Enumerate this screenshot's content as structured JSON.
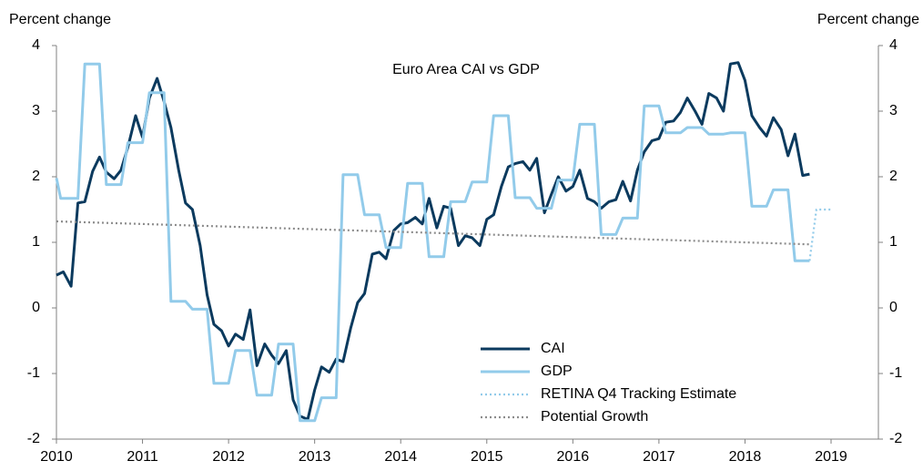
{
  "chart_data": {
    "type": "line",
    "title": "Euro Area CAI vs GDP",
    "y_label": "Percent change",
    "y2_label": "Percent change",
    "xlim": [
      2010,
      2019.55
    ],
    "xticks": [
      2010,
      2011,
      2012,
      2013,
      2014,
      2015,
      2016,
      2017,
      2018,
      2019
    ],
    "ylim": [
      -2,
      4
    ],
    "yticks": [
      -2,
      -1,
      0,
      1,
      2,
      3,
      4
    ],
    "y2lim": [
      -2,
      4
    ],
    "y2ticks": [
      -2,
      -1,
      0,
      1,
      2,
      3,
      4
    ],
    "series": [
      {
        "name": "CAI",
        "color": "#0b3a5e",
        "line_style": "solid",
        "x": [
          2010.0,
          2010.08,
          2010.17,
          2010.25,
          2010.33,
          2010.42,
          2010.5,
          2010.58,
          2010.67,
          2010.75,
          2010.83,
          2010.92,
          2011.0,
          2011.08,
          2011.17,
          2011.25,
          2011.33,
          2011.42,
          2011.5,
          2011.58,
          2011.67,
          2011.75,
          2011.83,
          2011.92,
          2012.0,
          2012.08,
          2012.17,
          2012.25,
          2012.33,
          2012.42,
          2012.5,
          2012.58,
          2012.67,
          2012.75,
          2012.83,
          2012.92,
          2013.0,
          2013.08,
          2013.17,
          2013.25,
          2013.33,
          2013.42,
          2013.5,
          2013.58,
          2013.67,
          2013.75,
          2013.83,
          2013.92,
          2014.0,
          2014.08,
          2014.17,
          2014.25,
          2014.33,
          2014.42,
          2014.5,
          2014.58,
          2014.67,
          2014.75,
          2014.83,
          2014.92,
          2015.0,
          2015.08,
          2015.17,
          2015.25,
          2015.33,
          2015.42,
          2015.5,
          2015.58,
          2015.67,
          2015.75,
          2015.83,
          2015.92,
          2016.0,
          2016.08,
          2016.17,
          2016.25,
          2016.33,
          2016.42,
          2016.5,
          2016.58,
          2016.67,
          2016.75,
          2016.83,
          2016.92,
          2017.0,
          2017.08,
          2017.17,
          2017.25,
          2017.33,
          2017.42,
          2017.5,
          2017.58,
          2017.67,
          2017.75,
          2017.83,
          2017.92,
          2018.0,
          2018.08,
          2018.17,
          2018.25,
          2018.33,
          2018.42,
          2018.5,
          2018.58,
          2018.67,
          2018.75
        ],
        "values": [
          0.5,
          0.55,
          0.33,
          1.6,
          1.62,
          2.08,
          2.3,
          2.07,
          1.97,
          2.1,
          2.45,
          2.93,
          2.6,
          3.2,
          3.5,
          3.15,
          2.75,
          2.1,
          1.6,
          1.5,
          0.95,
          0.2,
          -0.25,
          -0.35,
          -0.58,
          -0.4,
          -0.48,
          -0.03,
          -0.88,
          -0.55,
          -0.72,
          -0.85,
          -0.65,
          -1.4,
          -1.65,
          -1.7,
          -1.25,
          -0.9,
          -0.98,
          -0.78,
          -0.82,
          -0.3,
          0.08,
          0.22,
          0.82,
          0.85,
          0.75,
          1.18,
          1.28,
          1.3,
          1.38,
          1.28,
          1.67,
          1.22,
          1.55,
          1.52,
          0.95,
          1.1,
          1.07,
          0.95,
          1.35,
          1.42,
          1.85,
          2.15,
          2.2,
          2.23,
          2.1,
          2.28,
          1.45,
          1.73,
          2.0,
          1.78,
          1.85,
          2.1,
          1.67,
          1.62,
          1.52,
          1.62,
          1.65,
          1.93,
          1.63,
          2.1,
          2.38,
          2.55,
          2.58,
          2.83,
          2.85,
          2.98,
          3.2,
          3.0,
          2.8,
          3.27,
          3.2,
          3.0,
          3.72,
          3.74,
          3.47,
          2.93,
          2.75,
          2.62,
          2.9,
          2.72,
          2.32,
          2.65,
          2.02,
          2.04
        ]
      },
      {
        "name": "GDP",
        "color": "#92cbea",
        "line_style": "solid",
        "x": [
          2010.0,
          2010.05,
          2010.25,
          2010.33,
          2010.5,
          2010.58,
          2010.75,
          2010.83,
          2011.0,
          2011.08,
          2011.25,
          2011.33,
          2011.5,
          2011.58,
          2011.75,
          2011.83,
          2012.0,
          2012.08,
          2012.25,
          2012.33,
          2012.5,
          2012.58,
          2012.75,
          2012.83,
          2013.0,
          2013.08,
          2013.25,
          2013.33,
          2013.5,
          2013.58,
          2013.75,
          2013.83,
          2014.0,
          2014.08,
          2014.25,
          2014.33,
          2014.5,
          2014.58,
          2014.75,
          2014.83,
          2015.0,
          2015.08,
          2015.25,
          2015.33,
          2015.5,
          2015.58,
          2015.75,
          2015.83,
          2016.0,
          2016.08,
          2016.25,
          2016.33,
          2016.5,
          2016.58,
          2016.75,
          2016.83,
          2017.0,
          2017.08,
          2017.25,
          2017.33,
          2017.5,
          2017.58,
          2017.75,
          2017.83,
          2018.0,
          2018.08,
          2018.25,
          2018.33,
          2018.5,
          2018.58,
          2018.75
        ],
        "values": [
          1.98,
          1.67,
          1.67,
          3.72,
          3.72,
          1.88,
          1.88,
          2.52,
          2.52,
          3.28,
          3.28,
          0.1,
          0.1,
          -0.02,
          -0.02,
          -1.15,
          -1.15,
          -0.65,
          -0.65,
          -1.33,
          -1.33,
          -0.55,
          -0.55,
          -1.72,
          -1.72,
          -1.37,
          -1.37,
          2.03,
          2.03,
          1.42,
          1.42,
          0.92,
          0.92,
          1.9,
          1.9,
          0.78,
          0.78,
          1.62,
          1.62,
          1.92,
          1.92,
          2.93,
          2.93,
          1.68,
          1.68,
          1.52,
          1.52,
          1.95,
          1.95,
          2.8,
          2.8,
          1.12,
          1.12,
          1.37,
          1.37,
          3.08,
          3.08,
          2.67,
          2.67,
          2.75,
          2.75,
          2.65,
          2.65,
          2.67,
          2.67,
          1.55,
          1.55,
          1.8,
          1.8,
          0.72,
          0.72
        ]
      },
      {
        "name": "RETINA Q4 Tracking Estimate",
        "color": "#92cbea",
        "line_style": "dotted",
        "x": [
          2018.75,
          2018.83,
          2019.0
        ],
        "values": [
          0.72,
          1.5,
          1.5
        ]
      },
      {
        "name": "Potential Growth",
        "color": "#8c8c8c",
        "line_style": "dotted",
        "x": [
          2010.0,
          2018.75
        ],
        "values": [
          1.32,
          0.97
        ]
      }
    ]
  }
}
